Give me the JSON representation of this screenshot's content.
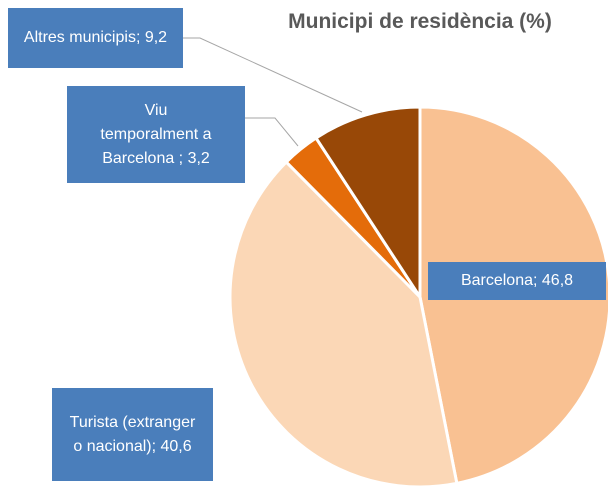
{
  "chart_data": {
    "type": "pie",
    "title": "Municipi de residència (%)",
    "values": [
      46.8,
      40.6,
      3.2,
      9.2
    ],
    "value_labels": [
      "Barcelona; 46,8",
      "Turista (extranger o nacional); 40,6",
      "Viu temporalment a Barcelona ; 3,2",
      "Altres municipis; 9,2"
    ],
    "colors": [
      "#f9c192",
      "#fbd7b6",
      "#e46c0a",
      "#984807"
    ]
  }
}
